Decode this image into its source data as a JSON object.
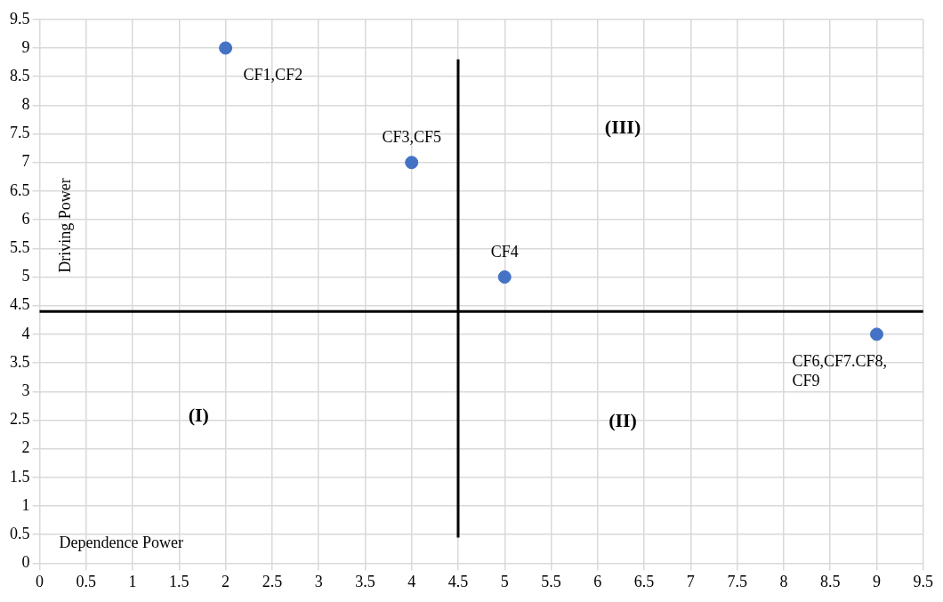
{
  "chart_data": {
    "type": "scatter",
    "xlabel": "Dependence Power",
    "ylabel": "Driving Power",
    "x": [
      2,
      4,
      5,
      9
    ],
    "values": [
      9,
      7,
      5,
      4
    ],
    "color": "#4472c4",
    "marker": "circle",
    "xlim": [
      0,
      9.5
    ],
    "xticks": [
      0,
      0.5,
      1,
      1.5,
      2,
      2.5,
      3,
      3.5,
      4,
      4.5,
      5,
      5.5,
      6,
      6.5,
      7,
      7.5,
      8,
      8.5,
      9,
      9.5
    ],
    "ylim": [
      0,
      9.5
    ],
    "yticks": [
      0,
      0.5,
      1,
      1.5,
      2,
      2.5,
      3,
      3.5,
      4,
      4.5,
      5,
      5.5,
      6,
      6.5,
      7,
      7.5,
      8,
      8.5,
      9,
      9.5
    ],
    "grid": true,
    "legend": false,
    "ref_lines": [
      {
        "axis": "x",
        "value": 4.5,
        "color": "#000000"
      },
      {
        "axis": "y",
        "value": 4.4,
        "color": "#000000"
      }
    ],
    "annotations": [
      {
        "text": "CF1,CF2",
        "x": 2,
        "y": 9
      },
      {
        "text": "CF3,CF5",
        "x": 4,
        "y": 7
      },
      {
        "text": "CF4",
        "x": 5,
        "y": 5
      },
      {
        "text": "CF6,CF7.CF8, CF9",
        "x": 9,
        "y": 4
      },
      "(I)",
      "(II)",
      "(III)"
    ]
  }
}
